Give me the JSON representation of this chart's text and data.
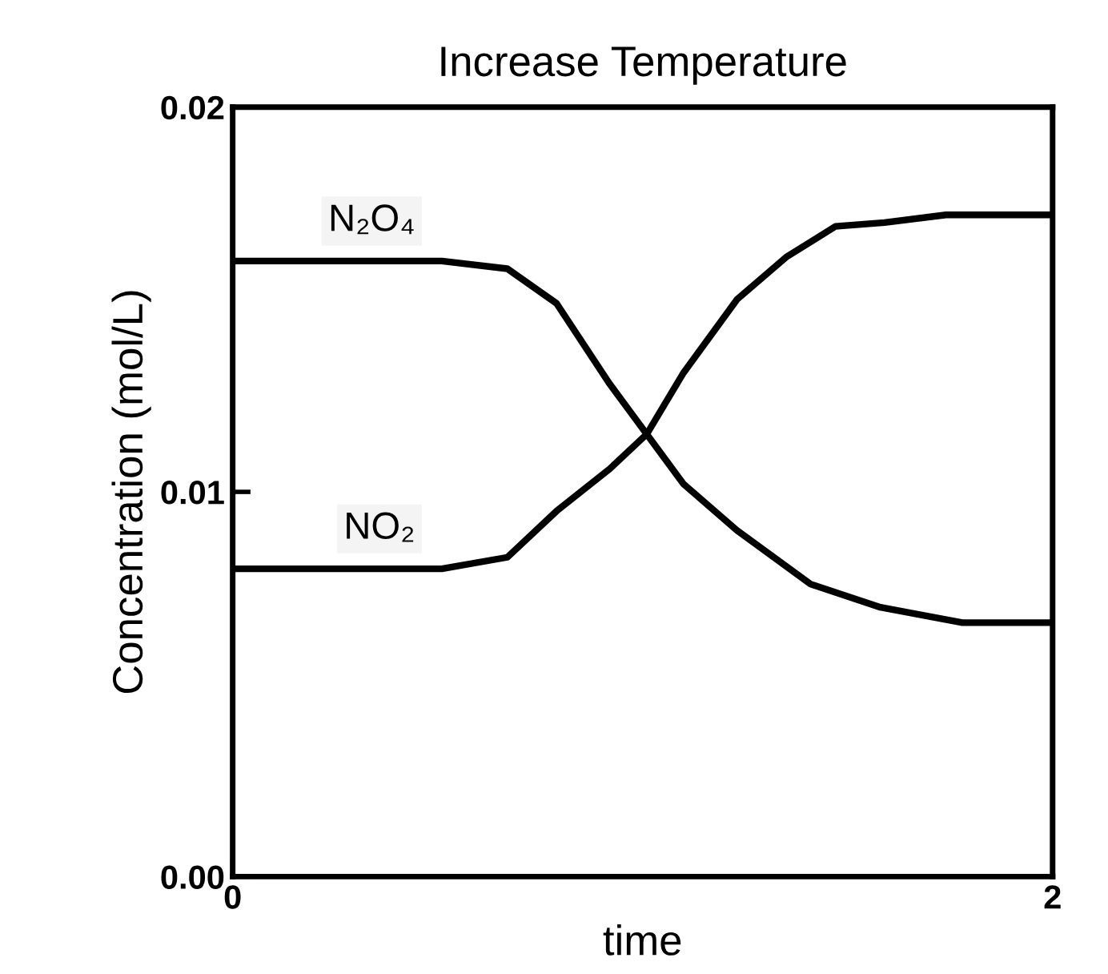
{
  "chart_data": {
    "type": "line",
    "title": "Increase Temperature",
    "xlabel": "time",
    "ylabel": "Concentration (mol/L)",
    "xlim": [
      0,
      2
    ],
    "xticks": [
      0,
      2
    ],
    "ylim": [
      0,
      0.02
    ],
    "yticks": [
      {
        "value": 0,
        "label": "0.00"
      },
      0.01,
      0.02
    ],
    "grid": false,
    "legend": false,
    "series": [
      {
        "name": "N₂O₄",
        "color": "#000000",
        "x": [
          0,
          0.51,
          0.67,
          0.79,
          0.92,
          1.01,
          1.1,
          1.23,
          1.41,
          1.58,
          1.78,
          2.0
        ],
        "values": [
          0.016,
          0.016,
          0.0158,
          0.0149,
          0.0128,
          0.0115,
          0.0102,
          0.009,
          0.0076,
          0.007,
          0.0066,
          0.0066
        ]
      },
      {
        "name": "NO₂",
        "color": "#000000",
        "x": [
          0,
          0.51,
          0.67,
          0.79,
          0.92,
          1.01,
          1.1,
          1.23,
          1.35,
          1.47,
          1.59,
          1.74,
          2.0
        ],
        "values": [
          0.008,
          0.008,
          0.0083,
          0.0095,
          0.0106,
          0.0115,
          0.0131,
          0.015,
          0.0161,
          0.0169,
          0.017,
          0.0172,
          0.0172
        ]
      }
    ]
  }
}
